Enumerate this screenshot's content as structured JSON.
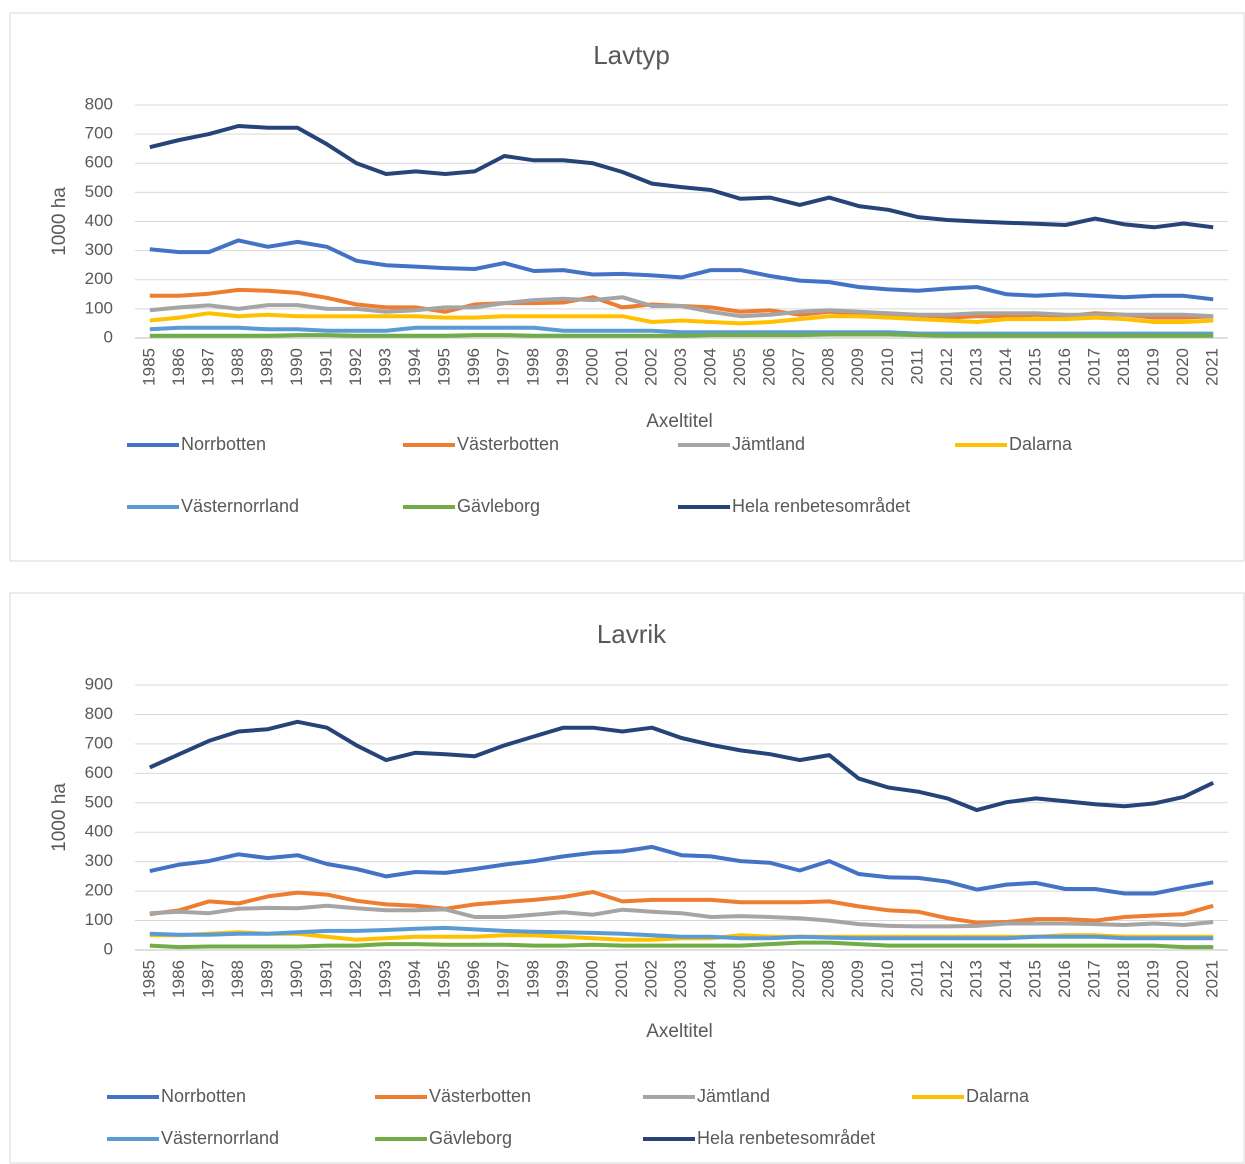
{
  "chart_data": [
    {
      "type": "line",
      "title": "Lavtyp",
      "ylabel": "1000 ha",
      "xlabel": "Axeltitel",
      "categories": [
        "1985",
        "1986",
        "1987",
        "1988",
        "1989",
        "1990",
        "1991",
        "1992",
        "1993",
        "1994",
        "1995",
        "1996",
        "1997",
        "1998",
        "1999",
        "2000",
        "2001",
        "2002",
        "2003",
        "2004",
        "2005",
        "2006",
        "2007",
        "2008",
        "2009",
        "2010",
        "2011",
        "2012",
        "2013",
        "2014",
        "2015",
        "2016",
        "2017",
        "2018",
        "2019",
        "2020",
        "2021"
      ],
      "ylim": [
        0,
        800
      ],
      "yticks": [
        0,
        100,
        200,
        300,
        400,
        500,
        600,
        700,
        800
      ],
      "grid": true,
      "series": [
        {
          "name": "Norrbotten",
          "color": "#4472c4",
          "values": [
            305,
            295,
            295,
            335,
            313,
            330,
            313,
            265,
            250,
            245,
            240,
            237,
            257,
            230,
            233,
            218,
            220,
            215,
            208,
            233,
            233,
            213,
            197,
            192,
            175,
            167,
            162,
            170,
            175,
            150,
            145,
            150,
            145,
            140,
            145,
            145,
            133
          ]
        },
        {
          "name": "Västerbotten",
          "color": "#ed7d31",
          "values": [
            145,
            145,
            152,
            165,
            162,
            155,
            138,
            115,
            105,
            105,
            90,
            115,
            120,
            120,
            122,
            140,
            105,
            115,
            110,
            105,
            90,
            95,
            80,
            90,
            85,
            80,
            75,
            70,
            75,
            75,
            80,
            75,
            85,
            80,
            70,
            70,
            75
          ]
        },
        {
          "name": "Jämtland",
          "color": "#a5a5a5",
          "values": [
            95,
            105,
            112,
            100,
            113,
            113,
            100,
            100,
            90,
            95,
            105,
            105,
            120,
            130,
            135,
            130,
            140,
            110,
            110,
            90,
            75,
            80,
            90,
            95,
            90,
            85,
            80,
            80,
            85,
            85,
            85,
            80,
            80,
            80,
            80,
            80,
            75
          ]
        },
        {
          "name": "Dalarna",
          "color": "#ffc000",
          "values": [
            60,
            70,
            85,
            75,
            80,
            75,
            75,
            75,
            75,
            75,
            70,
            70,
            75,
            75,
            75,
            75,
            75,
            55,
            60,
            55,
            50,
            55,
            65,
            75,
            75,
            70,
            65,
            60,
            55,
            65,
            65,
            65,
            70,
            65,
            55,
            55,
            60
          ]
        },
        {
          "name": "Västernorrland",
          "color": "#5b9bd5",
          "values": [
            30,
            35,
            35,
            35,
            30,
            30,
            25,
            25,
            25,
            35,
            35,
            35,
            35,
            35,
            25,
            25,
            25,
            25,
            20,
            20,
            20,
            20,
            20,
            20,
            20,
            20,
            15,
            15,
            15,
            15,
            15,
            15,
            15,
            15,
            15,
            15,
            15
          ]
        },
        {
          "name": "Gävleborg",
          "color": "#70ad47",
          "values": [
            8,
            8,
            8,
            8,
            8,
            10,
            10,
            8,
            8,
            8,
            8,
            10,
            10,
            8,
            8,
            8,
            8,
            8,
            8,
            10,
            10,
            10,
            10,
            12,
            12,
            12,
            10,
            8,
            8,
            8,
            8,
            8,
            8,
            8,
            8,
            8,
            8
          ]
        },
        {
          "name": "Hela renbetesområdet",
          "color": "#264478",
          "values": [
            655,
            680,
            700,
            728,
            722,
            722,
            665,
            600,
            563,
            572,
            563,
            572,
            625,
            610,
            610,
            600,
            570,
            530,
            518,
            508,
            478,
            482,
            457,
            482,
            453,
            440,
            415,
            405,
            400,
            396,
            392,
            388,
            410,
            390,
            380,
            393,
            380
          ]
        }
      ]
    },
    {
      "type": "line",
      "title": "Lavrik",
      "ylabel": "1000 ha",
      "xlabel": "Axeltitel",
      "categories": [
        "1985",
        "1986",
        "1987",
        "1988",
        "1989",
        "1990",
        "1991",
        "1992",
        "1993",
        "1994",
        "1995",
        "1996",
        "1997",
        "1998",
        "1999",
        "2000",
        "2001",
        "2002",
        "2003",
        "2004",
        "2005",
        "2006",
        "2007",
        "2008",
        "2009",
        "2010",
        "2011",
        "2012",
        "2013",
        "2014",
        "2015",
        "2016",
        "2017",
        "2018",
        "2019",
        "2020",
        "2021"
      ],
      "ylim": [
        0,
        900
      ],
      "yticks": [
        0,
        100,
        200,
        300,
        400,
        500,
        600,
        700,
        800,
        900
      ],
      "grid": true,
      "series": [
        {
          "name": "Norrbotten",
          "color": "#4472c4",
          "values": [
            268,
            290,
            302,
            325,
            312,
            322,
            292,
            275,
            250,
            265,
            262,
            275,
            290,
            302,
            318,
            330,
            335,
            350,
            322,
            318,
            302,
            296,
            270,
            302,
            258,
            247,
            245,
            232,
            205,
            222,
            228,
            207,
            207,
            192,
            192,
            212,
            230
          ]
        },
        {
          "name": "Västerbotten",
          "color": "#ed7d31",
          "values": [
            122,
            135,
            165,
            158,
            182,
            195,
            188,
            167,
            155,
            150,
            140,
            155,
            163,
            170,
            180,
            197,
            165,
            170,
            170,
            170,
            162,
            162,
            162,
            165,
            148,
            135,
            130,
            108,
            93,
            95,
            105,
            105,
            100,
            112,
            117,
            122,
            150
          ]
        },
        {
          "name": "Jämtland",
          "color": "#a5a5a5",
          "values": [
            125,
            130,
            125,
            140,
            143,
            142,
            150,
            142,
            135,
            135,
            138,
            112,
            112,
            120,
            128,
            120,
            137,
            130,
            125,
            112,
            115,
            112,
            108,
            100,
            88,
            82,
            80,
            80,
            82,
            90,
            90,
            90,
            88,
            85,
            90,
            85,
            95
          ]
        },
        {
          "name": "Dalarna",
          "color": "#ffc000",
          "values": [
            50,
            50,
            55,
            60,
            55,
            55,
            45,
            35,
            40,
            45,
            45,
            45,
            50,
            50,
            45,
            40,
            35,
            35,
            40,
            40,
            50,
            45,
            45,
            45,
            45,
            45,
            45,
            45,
            45,
            45,
            45,
            50,
            50,
            45,
            45,
            45,
            45
          ]
        },
        {
          "name": "Västernorrland",
          "color": "#5b9bd5",
          "values": [
            55,
            52,
            52,
            55,
            55,
            60,
            65,
            65,
            68,
            72,
            75,
            70,
            65,
            62,
            60,
            58,
            55,
            50,
            45,
            45,
            40,
            40,
            45,
            42,
            40,
            40,
            40,
            40,
            40,
            40,
            45,
            45,
            45,
            40,
            40,
            40,
            40
          ]
        },
        {
          "name": "Gävleborg",
          "color": "#70ad47",
          "values": [
            15,
            10,
            12,
            12,
            12,
            12,
            15,
            15,
            20,
            20,
            18,
            18,
            18,
            15,
            15,
            18,
            15,
            15,
            15,
            15,
            15,
            20,
            25,
            25,
            20,
            15,
            15,
            15,
            15,
            15,
            15,
            15,
            15,
            15,
            15,
            10,
            10
          ]
        },
        {
          "name": "Hela renbetesområdet",
          "color": "#264478",
          "values": [
            620,
            665,
            710,
            742,
            750,
            775,
            755,
            695,
            645,
            670,
            665,
            658,
            695,
            725,
            755,
            755,
            742,
            755,
            720,
            697,
            678,
            665,
            645,
            662,
            582,
            552,
            538,
            515,
            475,
            502,
            515,
            505,
            495,
            488,
            498,
            520,
            568
          ]
        }
      ]
    }
  ]
}
